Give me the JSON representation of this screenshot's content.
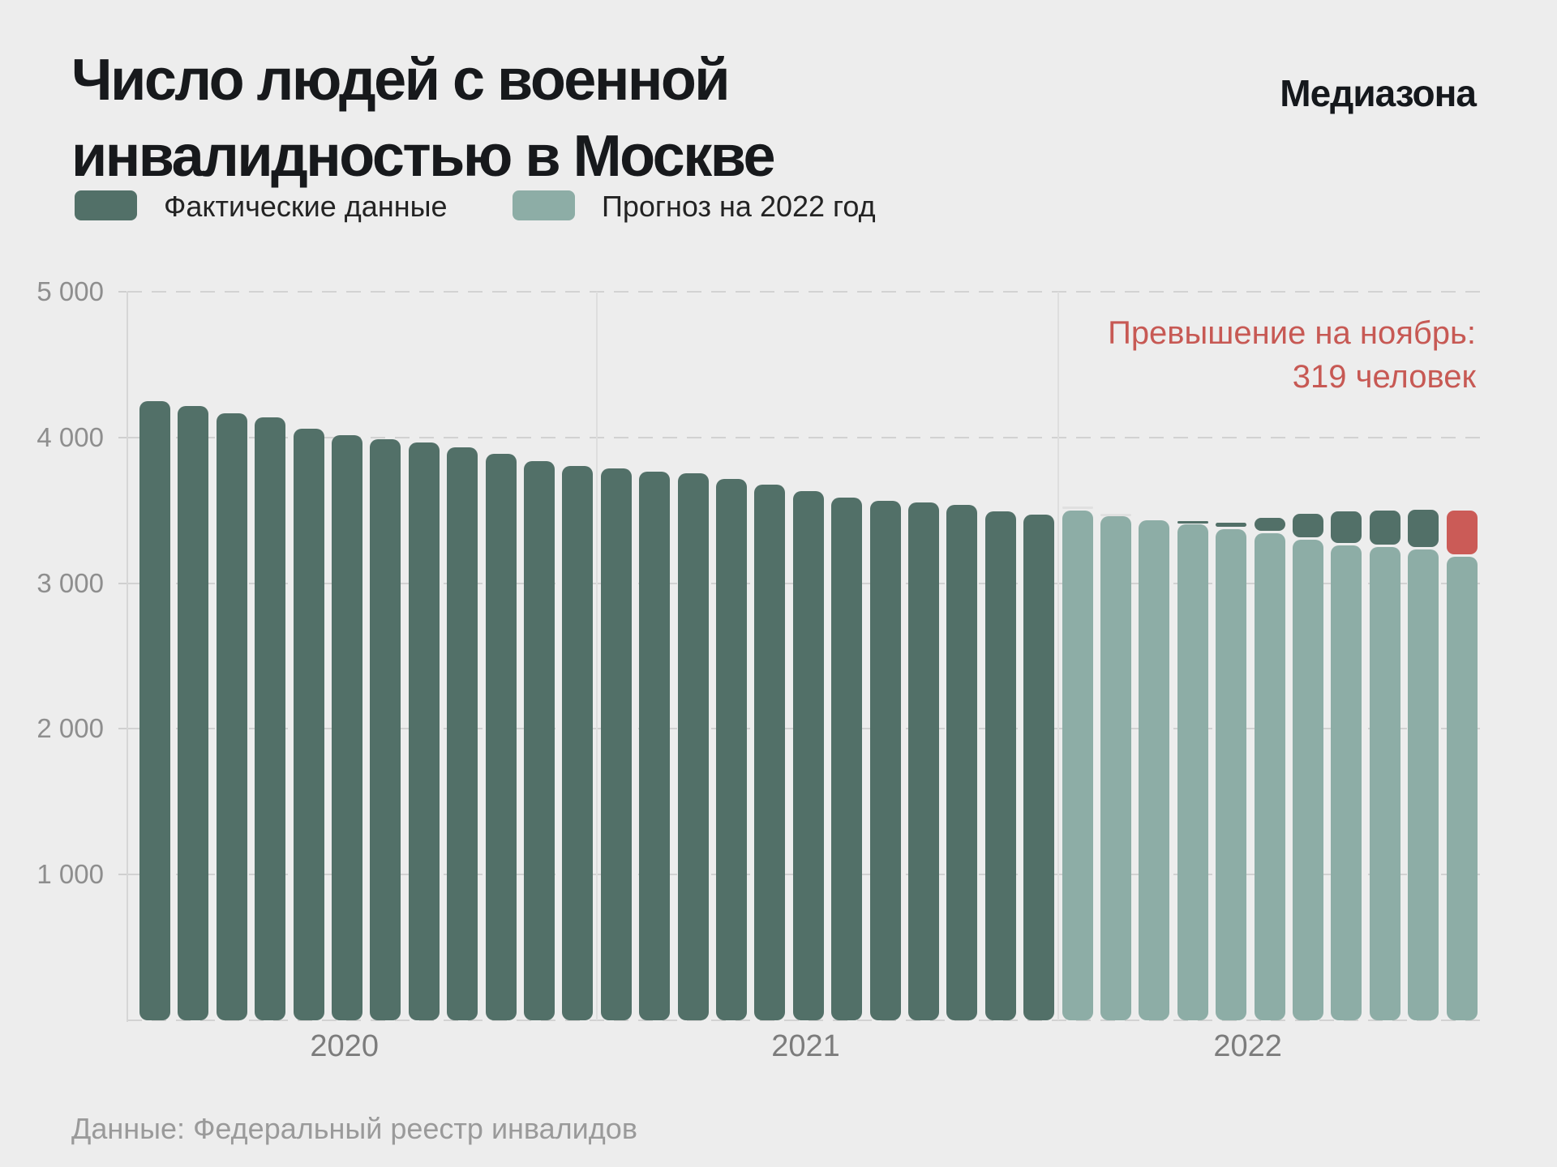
{
  "title": {
    "line1": "Число людей с военной",
    "line2": "инвалидностью в Москве"
  },
  "brand": "Медиазона",
  "legend": [
    {
      "label": "Фактические данные",
      "color": "#527068"
    },
    {
      "label": "Прогноз на 2022 год",
      "color": "#8dada6"
    }
  ],
  "annotation": {
    "line1": "Превышение на ноябрь:",
    "line2": "319 человек",
    "color": "#c75954"
  },
  "source": "Данные: Федеральный реестр инвалидов",
  "chart_data": {
    "type": "bar",
    "title": "Число людей с военной инвалидностью в Москве",
    "unit": "человек",
    "ylim": [
      0,
      5000
    ],
    "grid": true,
    "y_ticks": [
      {
        "label": "5 000",
        "value": 5000
      },
      {
        "label": "4 000",
        "value": 4000
      },
      {
        "label": "3 000",
        "value": 3000
      },
      {
        "label": "2 000",
        "value": 2000
      },
      {
        "label": "1 000",
        "value": 1000
      }
    ],
    "x_groups": [
      "2020",
      "2021",
      "2022"
    ],
    "colors": {
      "actual": "#527068",
      "forecast": "#8dada6",
      "excess": "#cb5b57",
      "ghost": "#e0e0e0"
    },
    "series": [
      {
        "name": "Фактические данные 2020",
        "year": "2020",
        "values": [
          4249,
          4216,
          4166,
          4138,
          4060,
          4016,
          3988,
          3966,
          3932,
          3888,
          3838,
          3804
        ]
      },
      {
        "name": "Фактические данные 2021",
        "year": "2021",
        "values": [
          3790,
          3765,
          3755,
          3715,
          3675,
          3630,
          3585,
          3565,
          3555,
          3535,
          3495,
          3470
        ]
      },
      {
        "name": "Прогноз на 2022 год",
        "year": "2022",
        "values": [
          3498,
          3461,
          3433,
          3405,
          3371,
          3343,
          3298,
          3259,
          3248,
          3231,
          3181
        ]
      },
      {
        "name": "Фактические данные 2022 (поверх прогноза)",
        "year": "2022",
        "values": [
          null,
          null,
          null,
          3426,
          3415,
          3448,
          3475,
          3490,
          3498,
          3505,
          3500
        ]
      }
    ],
    "ghost_2022": [
      3527,
      3474,
      null,
      null,
      null,
      null,
      null,
      null,
      null,
      null,
      null
    ],
    "excess_month_index": 10,
    "excess_value": 319
  }
}
